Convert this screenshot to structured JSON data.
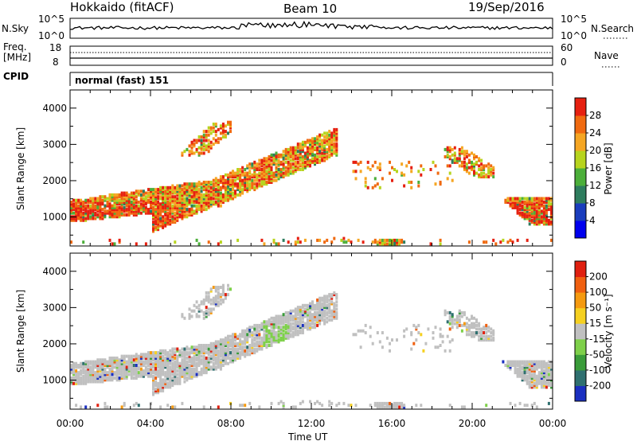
{
  "header": {
    "station": "Hokkaido (fitACF)",
    "beam": "Beam 10",
    "date": "19/Sep/2016"
  },
  "top_panels": {
    "nsky_label": "N.Sky",
    "nsearch_label": "N.Search",
    "freq_label_1": "Freq.",
    "freq_label_2": "[MHz]",
    "nave_label": "Nave",
    "cpid_label": "CPID",
    "cpid_value": "normal (fast) 151",
    "left_ticks_nsky": [
      "10^5",
      "10^0"
    ],
    "right_ticks_nsky": [
      "10^5",
      "10^0"
    ],
    "left_ticks_freq": [
      "18",
      "8"
    ],
    "right_ticks_freq": [
      "60",
      "0"
    ]
  },
  "chart_data": [
    {
      "type": "heatmap",
      "variable": "Power",
      "ylabel": "Slant Range [km]",
      "xlabel": "Time UT",
      "x_ticks": [
        "00:00",
        "04:00",
        "08:00",
        "12:00",
        "16:00",
        "20:00",
        "00:00"
      ],
      "y_ticks": [
        1000,
        2000,
        3000,
        4000
      ],
      "ylim": [
        200,
        4500
      ],
      "xlim_hours": [
        0,
        24
      ],
      "colorbar": {
        "label": "Power [dB]",
        "ticks": [
          4,
          8,
          12,
          16,
          20,
          24,
          28
        ],
        "colors": [
          "#0000ee",
          "#1a3dbd",
          "#2e7d5e",
          "#4caf3a",
          "#b7d41e",
          "#f5a623",
          "#f06a10",
          "#e62010"
        ]
      }
    },
    {
      "type": "heatmap",
      "variable": "Velocity",
      "ylabel": "Slant Range [km]",
      "xlabel": "Time UT",
      "x_ticks": [
        "00:00",
        "04:00",
        "08:00",
        "12:00",
        "16:00",
        "20:00",
        "00:00"
      ],
      "y_ticks": [
        1000,
        2000,
        3000,
        4000
      ],
      "ylim": [
        200,
        4500
      ],
      "xlim_hours": [
        0,
        24
      ],
      "colorbar": {
        "label": "Velocity [m s⁻¹]",
        "ticks": [
          200,
          100,
          50,
          15,
          -15,
          -50,
          -100,
          -200
        ],
        "colors": [
          "#1a2fc0",
          "#2f7070",
          "#3a9c3a",
          "#7ed04a",
          "#c0c0c0",
          "#f5d020",
          "#f59a10",
          "#f06010",
          "#e02010"
        ]
      }
    }
  ],
  "bottom": {
    "xlabel": "Time UT"
  }
}
